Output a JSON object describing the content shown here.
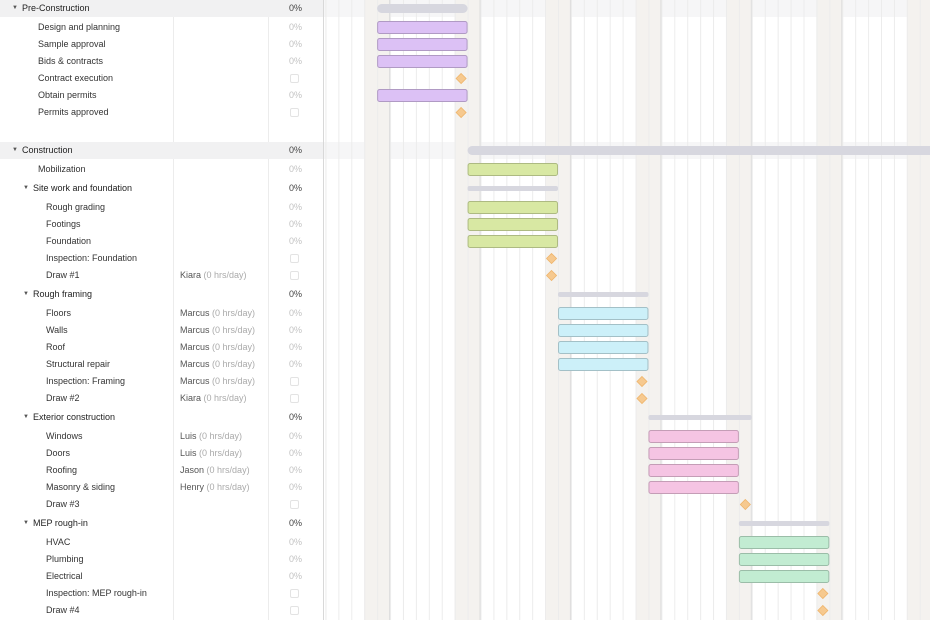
{
  "colors": {
    "summary_bar": "#d7d7df",
    "weekend_shade": "#f4f2ef",
    "milestone": "#f6c98f",
    "pre_construction": "#dcc1f5",
    "site_work": "#d8e8a3",
    "rough_framing": "#ccf0f9",
    "exterior": "#f5c4e3",
    "mep": "#c2ecd2"
  },
  "chart_data": {
    "type": "gantt",
    "unit": "day",
    "weekend_start_days": [
      3,
      10,
      17,
      24,
      31,
      38,
      45,
      52
    ],
    "tasks": [
      {
        "name": "Pre-Construction",
        "kind": "group",
        "start": 4,
        "end": 11,
        "color": "summary_bar"
      },
      {
        "name": "Design and planning",
        "kind": "task",
        "start": 4,
        "end": 11,
        "color": "pre_construction"
      },
      {
        "name": "Sample approval",
        "kind": "task",
        "start": 4,
        "end": 11,
        "color": "pre_construction"
      },
      {
        "name": "Bids & contracts",
        "kind": "task",
        "start": 4,
        "end": 11,
        "color": "pre_construction"
      },
      {
        "name": "Contract execution",
        "kind": "milestone",
        "start": 10.5
      },
      {
        "name": "Obtain permits",
        "kind": "task",
        "start": 4,
        "end": 11,
        "color": "pre_construction"
      },
      {
        "name": "Permits approved",
        "kind": "milestone",
        "start": 10.5
      },
      {
        "name": "",
        "kind": "blank"
      },
      {
        "name": "Construction",
        "kind": "group",
        "start": 11,
        "end": 49,
        "color": "summary_bar"
      },
      {
        "name": "Mobilization",
        "kind": "task",
        "start": 11,
        "end": 18,
        "color": "site_work"
      },
      {
        "name": "Site work and foundation",
        "kind": "sub",
        "start": 11,
        "end": 18,
        "color": "summary_bar"
      },
      {
        "name": "Rough grading",
        "kind": "task",
        "start": 11,
        "end": 18,
        "color": "site_work"
      },
      {
        "name": "Footings",
        "kind": "task",
        "start": 11,
        "end": 18,
        "color": "site_work"
      },
      {
        "name": "Foundation",
        "kind": "task",
        "start": 11,
        "end": 18,
        "color": "site_work"
      },
      {
        "name": "Inspection: Foundation",
        "kind": "milestone",
        "start": 17.5
      },
      {
        "name": "Draw #1",
        "kind": "milestone",
        "start": 17.5
      },
      {
        "name": "Rough framing",
        "kind": "sub",
        "start": 18,
        "end": 25,
        "color": "summary_bar"
      },
      {
        "name": "Floors",
        "kind": "task",
        "start": 18,
        "end": 25,
        "color": "rough_framing"
      },
      {
        "name": "Walls",
        "kind": "task",
        "start": 18,
        "end": 25,
        "color": "rough_framing"
      },
      {
        "name": "Roof",
        "kind": "task",
        "start": 18,
        "end": 25,
        "color": "rough_framing"
      },
      {
        "name": "Structural repair",
        "kind": "task",
        "start": 18,
        "end": 25,
        "color": "rough_framing"
      },
      {
        "name": "Inspection: Framing",
        "kind": "milestone",
        "start": 24.5
      },
      {
        "name": "Draw #2",
        "kind": "milestone",
        "start": 24.5
      },
      {
        "name": "Exterior construction",
        "kind": "sub",
        "start": 25,
        "end": 33,
        "color": "summary_bar"
      },
      {
        "name": "Windows",
        "kind": "task",
        "start": 25,
        "end": 32,
        "color": "exterior"
      },
      {
        "name": "Doors",
        "kind": "task",
        "start": 25,
        "end": 32,
        "color": "exterior"
      },
      {
        "name": "Roofing",
        "kind": "task",
        "start": 25,
        "end": 32,
        "color": "exterior"
      },
      {
        "name": "Masonry & siding",
        "kind": "task",
        "start": 25,
        "end": 32,
        "color": "exterior"
      },
      {
        "name": "Draw #3",
        "kind": "milestone",
        "start": 32.5
      },
      {
        "name": "MEP rough-in",
        "kind": "sub",
        "start": 32,
        "end": 39,
        "color": "summary_bar"
      },
      {
        "name": "HVAC",
        "kind": "task",
        "start": 32,
        "end": 39,
        "color": "mep"
      },
      {
        "name": "Plumbing",
        "kind": "task",
        "start": 32,
        "end": 39,
        "color": "mep"
      },
      {
        "name": "Electrical",
        "kind": "task",
        "start": 32,
        "end": 39,
        "color": "mep"
      },
      {
        "name": "Inspection: MEP rough-in",
        "kind": "milestone",
        "start": 38.5
      },
      {
        "name": "Draw #4",
        "kind": "milestone",
        "start": 38.5
      }
    ]
  },
  "grid": {
    "rows": [
      {
        "name": "Pre-Construction",
        "level": 0,
        "kind": "group",
        "caret": "▼",
        "pct": "0%"
      },
      {
        "name": "Design and planning",
        "level": 2,
        "kind": "task",
        "pct": "0%"
      },
      {
        "name": "Sample approval",
        "level": 2,
        "kind": "task",
        "pct": "0%"
      },
      {
        "name": "Bids & contracts",
        "level": 2,
        "kind": "task",
        "pct": "0%"
      },
      {
        "name": "Contract execution",
        "level": 2,
        "kind": "milestone",
        "checkbox": true
      },
      {
        "name": "Obtain permits",
        "level": 2,
        "kind": "task",
        "pct": "0%"
      },
      {
        "name": "Permits approved",
        "level": 2,
        "kind": "milestone",
        "checkbox": true
      },
      {
        "name": "",
        "level": 0,
        "kind": "blank"
      },
      {
        "name": "Construction",
        "level": 0,
        "kind": "group",
        "caret": "▼",
        "pct": "0%"
      },
      {
        "name": "Mobilization",
        "level": 2,
        "kind": "task",
        "pct": "0%"
      },
      {
        "name": "Site work and foundation",
        "level": 1,
        "kind": "sub",
        "caret": "▼",
        "pct": "0%"
      },
      {
        "name": "Rough grading",
        "level": 3,
        "kind": "task",
        "pct": "0%"
      },
      {
        "name": "Footings",
        "level": 3,
        "kind": "task",
        "pct": "0%"
      },
      {
        "name": "Foundation",
        "level": 3,
        "kind": "task",
        "pct": "0%"
      },
      {
        "name": "Inspection: Foundation",
        "level": 3,
        "kind": "milestone",
        "checkbox": true
      },
      {
        "name": "Draw #1",
        "level": 3,
        "kind": "milestone",
        "assignee": "Kiara",
        "hrs": "(0 hrs/day)",
        "checkbox": true
      },
      {
        "name": "Rough framing",
        "level": 1,
        "kind": "sub",
        "caret": "▼",
        "pct": "0%"
      },
      {
        "name": "Floors",
        "level": 3,
        "kind": "task",
        "assignee": "Marcus",
        "hrs": "(0 hrs/day)",
        "pct": "0%"
      },
      {
        "name": "Walls",
        "level": 3,
        "kind": "task",
        "assignee": "Marcus",
        "hrs": "(0 hrs/day)",
        "pct": "0%"
      },
      {
        "name": "Roof",
        "level": 3,
        "kind": "task",
        "assignee": "Marcus",
        "hrs": "(0 hrs/day)",
        "pct": "0%"
      },
      {
        "name": "Structural repair",
        "level": 3,
        "kind": "task",
        "assignee": "Marcus",
        "hrs": "(0 hrs/day)",
        "pct": "0%"
      },
      {
        "name": "Inspection: Framing",
        "level": 3,
        "kind": "milestone",
        "assignee": "Marcus",
        "hrs": "(0 hrs/day)",
        "checkbox": true
      },
      {
        "name": "Draw #2",
        "level": 3,
        "kind": "milestone",
        "assignee": "Kiara",
        "hrs": "(0 hrs/day)",
        "checkbox": true
      },
      {
        "name": "Exterior construction",
        "level": 1,
        "kind": "sub",
        "caret": "▼",
        "pct": "0%"
      },
      {
        "name": "Windows",
        "level": 3,
        "kind": "task",
        "assignee": "Luis",
        "hrs": "(0 hrs/day)",
        "pct": "0%"
      },
      {
        "name": "Doors",
        "level": 3,
        "kind": "task",
        "assignee": "Luis",
        "hrs": "(0 hrs/day)",
        "pct": "0%"
      },
      {
        "name": "Roofing",
        "level": 3,
        "kind": "task",
        "assignee": "Jason",
        "hrs": "(0 hrs/day)",
        "pct": "0%"
      },
      {
        "name": "Masonry & siding",
        "level": 3,
        "kind": "task",
        "assignee": "Henry",
        "hrs": "(0 hrs/day)",
        "pct": "0%"
      },
      {
        "name": "Draw #3",
        "level": 3,
        "kind": "milestone",
        "checkbox": true
      },
      {
        "name": "MEP rough-in",
        "level": 1,
        "kind": "sub",
        "caret": "▼",
        "pct": "0%"
      },
      {
        "name": "HVAC",
        "level": 3,
        "kind": "task",
        "pct": "0%"
      },
      {
        "name": "Plumbing",
        "level": 3,
        "kind": "task",
        "pct": "0%"
      },
      {
        "name": "Electrical",
        "level": 3,
        "kind": "task",
        "pct": "0%"
      },
      {
        "name": "Inspection: MEP rough-in",
        "level": 3,
        "kind": "milestone",
        "checkbox": true
      },
      {
        "name": "Draw #4",
        "level": 3,
        "kind": "milestone",
        "checkbox": true
      }
    ]
  }
}
